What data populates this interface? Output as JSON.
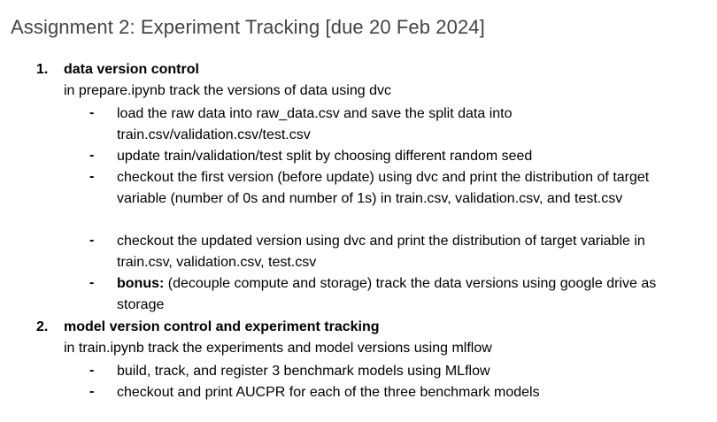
{
  "document": {
    "title": "Assignment 2: Experiment Tracking [due 20 Feb 2024]"
  },
  "sections": [
    {
      "number": "1.",
      "heading": "data version control",
      "description": "in prepare.ipynb track the versions of data using dvc",
      "bullets": [
        {
          "marker": "-",
          "text": "load the raw data into raw_data.csv and save the split data into train.csv/validation.csv/test.csv"
        },
        {
          "marker": "-",
          "text": "update train/validation/test split by choosing different random seed"
        },
        {
          "marker": "-",
          "text": "checkout the first version (before update) using dvc and print the distribution of target variable (number of 0s and number of 1s) in train.csv, validation.csv, and test.csv"
        },
        {
          "marker": "-",
          "text": "checkout the updated version using dvc and print the distribution of target variable in train.csv, validation.csv, test.csv"
        },
        {
          "marker": "-",
          "bold_prefix": "bonus:",
          "text": " (decouple compute and storage) track the data versions using google drive as storage"
        }
      ]
    },
    {
      "number": "2.",
      "heading": "model version control and experiment tracking",
      "description": "in train.ipynb track the experiments and model versions using mlflow",
      "bullets": [
        {
          "marker": "-",
          "text": "build, track, and register 3 benchmark models using MLflow"
        },
        {
          "marker": "-",
          "text": "checkout and print AUCPR for each of the three benchmark models"
        }
      ]
    }
  ]
}
